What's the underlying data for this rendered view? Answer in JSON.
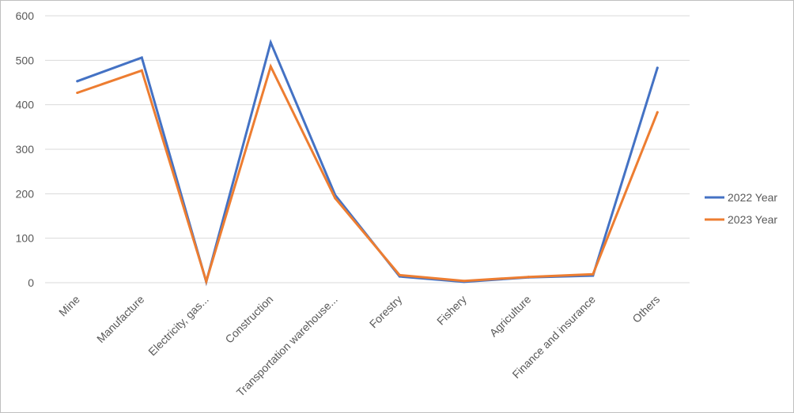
{
  "chart_data": {
    "type": "line",
    "categories": [
      "Mine",
      "Manufacture",
      "Electricity, gas...",
      "Construction",
      "Transportation warehouse...",
      "Forestry",
      "Fishery",
      "Agriculture",
      "Finance and insurance",
      "Others"
    ],
    "series": [
      {
        "name": "2022 Year",
        "color": "#4472c4",
        "values": [
          453,
          506,
          2,
          540,
          197,
          14,
          2,
          12,
          16,
          483
        ]
      },
      {
        "name": "2023 Year",
        "color": "#ed7d31",
        "values": [
          427,
          477,
          3,
          486,
          190,
          17,
          4,
          13,
          19,
          383
        ]
      }
    ],
    "ylim": [
      0,
      600
    ],
    "yticks": [
      0,
      100,
      200,
      300,
      400,
      500,
      600
    ],
    "grid": true,
    "legend_position": "right"
  }
}
